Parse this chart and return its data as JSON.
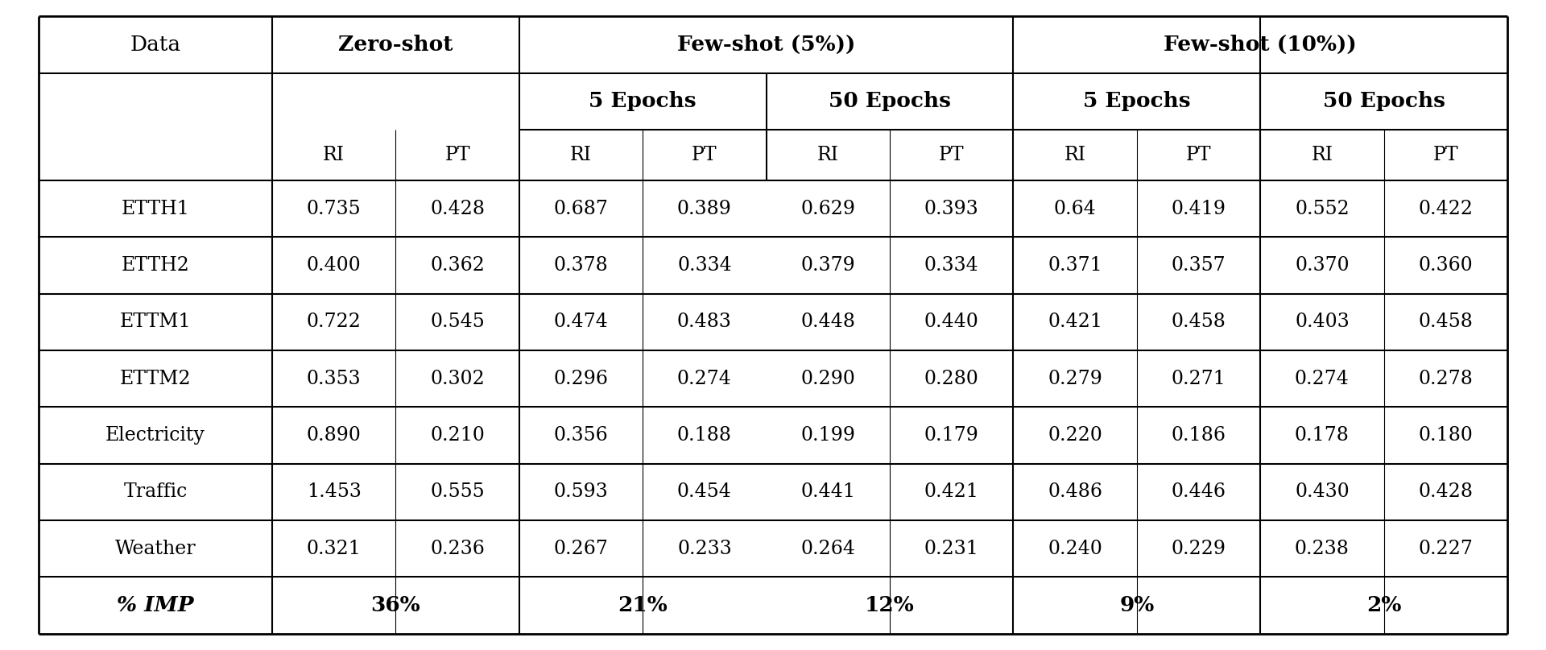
{
  "bg_color": "#ffffff",
  "datasets": [
    "ETTH1",
    "ETTH2",
    "ETTM1",
    "ETTM2",
    "Electricity",
    "Traffic",
    "Weather"
  ],
  "zero_shot_RI": [
    0.735,
    0.4,
    0.722,
    0.353,
    0.89,
    1.453,
    0.321
  ],
  "zero_shot_PT": [
    0.428,
    0.362,
    0.545,
    0.302,
    0.21,
    0.555,
    0.236
  ],
  "few5_5ep_RI": [
    0.687,
    0.378,
    0.474,
    0.296,
    0.356,
    0.593,
    0.267
  ],
  "few5_5ep_PT": [
    0.389,
    0.334,
    0.483,
    0.274,
    0.188,
    0.454,
    0.233
  ],
  "few5_50ep_RI": [
    0.629,
    0.379,
    0.448,
    0.29,
    0.199,
    0.441,
    0.264
  ],
  "few5_50ep_PT": [
    0.393,
    0.334,
    0.44,
    0.28,
    0.179,
    0.421,
    0.231
  ],
  "few10_5ep_RI": [
    0.64,
    0.371,
    0.421,
    0.279,
    0.22,
    0.486,
    0.24
  ],
  "few10_5ep_PT": [
    0.419,
    0.357,
    0.458,
    0.271,
    0.186,
    0.446,
    0.229
  ],
  "few10_50ep_RI": [
    0.552,
    0.37,
    0.403,
    0.274,
    0.178,
    0.43,
    0.238
  ],
  "few10_50ep_PT": [
    0.422,
    0.36,
    0.458,
    0.278,
    0.18,
    0.428,
    0.227
  ],
  "imp": [
    "36%",
    "21%",
    "12%",
    "9%",
    "2%"
  ],
  "zero_shot_RI_str": [
    "0.735",
    "0.400",
    "0.722",
    "0.353",
    "0.890",
    "1.453",
    "0.321"
  ],
  "zero_shot_PT_str": [
    "0.428",
    "0.362",
    "0.545",
    "0.302",
    "0.210",
    "0.555",
    "0.236"
  ],
  "few5_5ep_RI_str": [
    "0.687",
    "0.378",
    "0.474",
    "0.296",
    "0.356",
    "0.593",
    "0.267"
  ],
  "few5_5ep_PT_str": [
    "0.389",
    "0.334",
    "0.483",
    "0.274",
    "0.188",
    "0.454",
    "0.233"
  ],
  "few5_50ep_RI_str": [
    "0.629",
    "0.379",
    "0.448",
    "0.290",
    "0.199",
    "0.441",
    "0.264"
  ],
  "few5_50ep_PT_str": [
    "0.393",
    "0.334",
    "0.440",
    "0.280",
    "0.179",
    "0.421",
    "0.231"
  ],
  "few10_5ep_RI_str": [
    "0.64",
    "0.371",
    "0.421",
    "0.279",
    "0.220",
    "0.486",
    "0.240"
  ],
  "few10_5ep_PT_str": [
    "0.419",
    "0.357",
    "0.458",
    "0.271",
    "0.186",
    "0.446",
    "0.229"
  ],
  "few10_50ep_RI_str": [
    "0.552",
    "0.370",
    "0.403",
    "0.274",
    "0.178",
    "0.430",
    "0.238"
  ],
  "few10_50ep_PT_str": [
    "0.422",
    "0.360",
    "0.458",
    "0.278",
    "0.180",
    "0.428",
    "0.227"
  ],
  "font_family": "DejaVu Serif",
  "header1_fontsize": 19,
  "header2_fontsize": 19,
  "header3_fontsize": 17,
  "data_fontsize": 17,
  "imp_fontsize": 19,
  "lw_outer": 2.0,
  "lw_inner": 1.5,
  "lw_thin": 0.8
}
